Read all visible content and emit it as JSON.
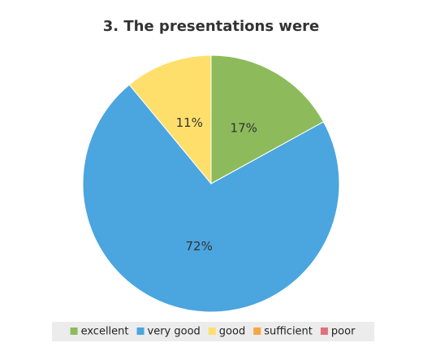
{
  "chart_data": {
    "type": "pie",
    "title": "3. The presentations were",
    "categories": [
      "excellent",
      "very good",
      "good",
      "sufficient",
      "poor"
    ],
    "values": [
      17,
      72,
      11,
      0,
      0
    ],
    "value_labels": [
      "17%",
      "72%",
      "11%",
      null,
      null
    ],
    "colors": [
      "#8dbb5b",
      "#4ba5df",
      "#fedf6b",
      "#f5a742",
      "#e0707a"
    ],
    "legend": "bottom"
  }
}
